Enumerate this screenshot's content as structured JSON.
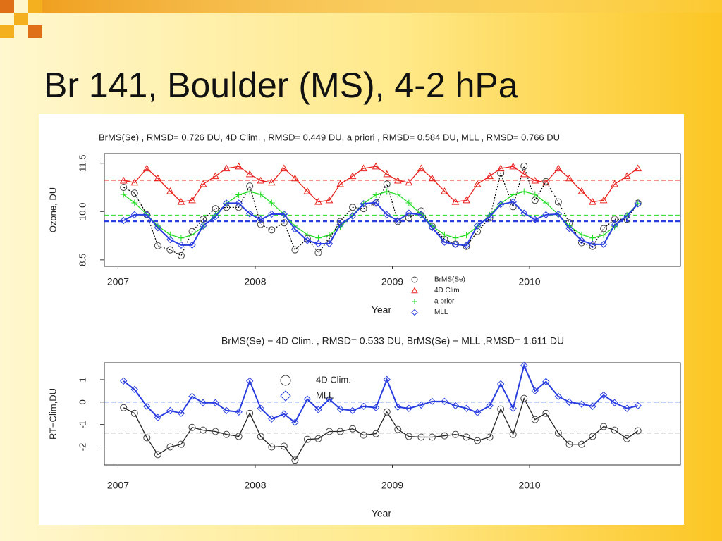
{
  "slide_title": "Br 141, Boulder (MS), 4-2 hPa",
  "chart_data": [
    {
      "type": "line",
      "title": "BrMS(Se) , RMSD= 0.726 DU, 4D Clim. , RMSD= 0.449 DU, a priori , RMSD= 0.584 DU, MLL , RMSD= 0.766 DU",
      "xlabel": "Year",
      "ylabel": "Ozone, DU",
      "xlim": [
        2006.9,
        2011.1
      ],
      "xticks": [
        2007,
        2008,
        2009,
        2010
      ],
      "ylim": [
        8.3,
        11.8
      ],
      "yticks": [
        8.5,
        {
          "value": 10,
          "label": "10.0"
        },
        11.5
      ],
      "x": [
        2007.04,
        2007.12,
        2007.21,
        2007.29,
        2007.38,
        2007.46,
        2007.54,
        2007.62,
        2007.71,
        2007.79,
        2007.88,
        2007.96,
        2008.04,
        2008.12,
        2008.21,
        2008.29,
        2008.38,
        2008.46,
        2008.54,
        2008.62,
        2008.71,
        2008.79,
        2008.88,
        2008.96,
        2009.04,
        2009.12,
        2009.21,
        2009.29,
        2009.38,
        2009.46,
        2009.54,
        2009.62,
        2009.71,
        2009.79,
        2009.88,
        2009.96,
        2010.04,
        2010.12,
        2010.21,
        2010.29,
        2010.38,
        2010.46,
        2010.54,
        2010.62,
        2010.71,
        2010.79
      ],
      "series": [
        {
          "name": "BrMS(Se)",
          "color": "#000000",
          "marker": "circle",
          "line_style": "dotted",
          "mean": 9.72,
          "values": [
            10.75,
            10.57,
            9.9,
            8.94,
            8.81,
            8.63,
            9.38,
            9.76,
            10.09,
            10.13,
            10.13,
            10.79,
            9.6,
            9.43,
            9.65,
            8.81,
            9.16,
            8.72,
            9.16,
            9.69,
            10.13,
            10.09,
            10.26,
            10.85,
            9.69,
            9.8,
            10.02,
            9.54,
            9.14,
            8.99,
            8.92,
            9.38,
            9.8,
            11.19,
            10.15,
            11.41,
            10.35,
            10.93,
            10.3,
            9.65,
            9.03,
            8.92,
            9.47,
            9.76,
            9.76,
            10.26
          ]
        },
        {
          "name": "4D Clim.",
          "color": "#e8201c",
          "marker": "triangle",
          "line_style": "solid",
          "mean": 10.97,
          "values": [
            10.96,
            10.9,
            11.34,
            11.03,
            10.63,
            10.3,
            10.35,
            10.85,
            11.1,
            11.34,
            11.4,
            11.16,
            10.96,
            10.9,
            11.34,
            11.03,
            10.63,
            10.3,
            10.35,
            10.85,
            11.1,
            11.34,
            11.4,
            11.16,
            10.96,
            10.9,
            11.34,
            11.03,
            10.63,
            10.3,
            10.35,
            10.85,
            11.1,
            11.34,
            11.4,
            11.16,
            10.96,
            10.9,
            11.34,
            11.03,
            10.63,
            10.3,
            10.35,
            10.85,
            11.1,
            11.34
          ]
        },
        {
          "name": "a priori",
          "color": "#22dd22",
          "marker": "plus",
          "line_style": "solid",
          "mean": 9.89,
          "values": [
            10.53,
            10.27,
            9.91,
            9.55,
            9.28,
            9.18,
            9.27,
            9.53,
            9.89,
            10.25,
            10.52,
            10.62,
            10.53,
            10.27,
            9.91,
            9.55,
            9.28,
            9.18,
            9.27,
            9.53,
            9.89,
            10.25,
            10.52,
            10.62,
            10.53,
            10.27,
            9.91,
            9.55,
            9.28,
            9.18,
            9.27,
            9.53,
            9.89,
            10.25,
            10.52,
            10.62,
            10.53,
            10.27,
            9.91,
            9.55,
            9.28,
            9.18,
            9.27,
            9.53,
            9.89,
            10.25
          ]
        },
        {
          "name": "MLL",
          "color": "#2a3ee0",
          "marker": "diamond",
          "line_style": "solid",
          "mean": 9.7,
          "values": [
            9.72,
            9.9,
            9.9,
            9.5,
            9.13,
            8.96,
            8.96,
            9.56,
            9.84,
            10.26,
            10.26,
            9.93,
            9.75,
            9.92,
            9.92,
            9.45,
            9.1,
            9.0,
            9.0,
            9.6,
            9.86,
            10.24,
            10.28,
            9.9,
            9.72,
            9.95,
            9.9,
            9.5,
            9.05,
            8.98,
            8.95,
            9.56,
            9.84,
            10.22,
            10.3,
            9.95,
            9.75,
            9.9,
            9.92,
            9.48,
            9.1,
            8.98,
            8.98,
            9.58,
            9.86,
            10.24
          ]
        }
      ]
    },
    {
      "type": "line",
      "title": "BrMS(Se) − 4D Clim. , RMSD= 0.533 DU, BrMS(Se) − MLL ,RMSD= 1.611 DU",
      "xlabel": "Year",
      "ylabel": "RT−Clim,DU",
      "xlim": [
        2006.9,
        2011.1
      ],
      "xticks": [
        2007,
        2008,
        2009,
        2010
      ],
      "ylim": [
        -2.8,
        1.75
      ],
      "yticks": [
        1,
        0,
        -1,
        -2
      ],
      "x": [
        2007.04,
        2007.12,
        2007.21,
        2007.29,
        2007.38,
        2007.46,
        2007.54,
        2007.62,
        2007.71,
        2007.79,
        2007.88,
        2007.96,
        2008.04,
        2008.12,
        2008.21,
        2008.29,
        2008.38,
        2008.46,
        2008.54,
        2008.62,
        2008.71,
        2008.79,
        2008.88,
        2008.96,
        2009.04,
        2009.12,
        2009.21,
        2009.29,
        2009.38,
        2009.46,
        2009.54,
        2009.62,
        2009.71,
        2009.79,
        2009.88,
        2009.96,
        2010.04,
        2010.12,
        2010.21,
        2010.29,
        2010.38,
        2010.46,
        2010.54,
        2010.62,
        2010.71,
        2010.79
      ],
      "series": [
        {
          "name": "4D Clim.",
          "color": "#222222",
          "marker": "circle",
          "line_style": "solid",
          "mean": -1.375,
          "values": [
            -0.25,
            -0.5,
            -1.59,
            -2.34,
            -2.0,
            -1.88,
            -1.13,
            -1.25,
            -1.31,
            -1.44,
            -1.53,
            -0.5,
            -1.53,
            -2.0,
            -1.97,
            -2.59,
            -1.66,
            -1.63,
            -1.31,
            -1.31,
            -1.19,
            -1.47,
            -1.41,
            -0.44,
            -1.22,
            -1.53,
            -1.56,
            -1.56,
            -1.5,
            -1.44,
            -1.56,
            -1.72,
            -1.56,
            -0.31,
            -1.44,
            0.16,
            -0.78,
            -0.5,
            -1.38,
            -1.88,
            -1.88,
            -1.53,
            -1.09,
            -1.25,
            -1.63,
            -1.28
          ]
        },
        {
          "name": "MLL",
          "color": "#2a3ee0",
          "marker": "diamond",
          "line_style": "solid",
          "mean": 0,
          "values": [
            0.94,
            0.56,
            -0.19,
            -0.69,
            -0.38,
            -0.5,
            0.25,
            -0.03,
            -0.03,
            -0.38,
            -0.44,
            0.94,
            -0.28,
            -0.75,
            -0.53,
            -0.91,
            0.13,
            -0.34,
            0.13,
            -0.31,
            -0.38,
            -0.19,
            -0.25,
            1.0,
            -0.22,
            -0.28,
            -0.13,
            0.03,
            0.03,
            -0.16,
            -0.28,
            -0.47,
            -0.16,
            0.81,
            -0.28,
            1.63,
            0.5,
            0.91,
            0.25,
            0,
            -0.09,
            -0.19,
            0.31,
            -0.03,
            -0.28,
            -0.16
          ]
        }
      ]
    }
  ]
}
